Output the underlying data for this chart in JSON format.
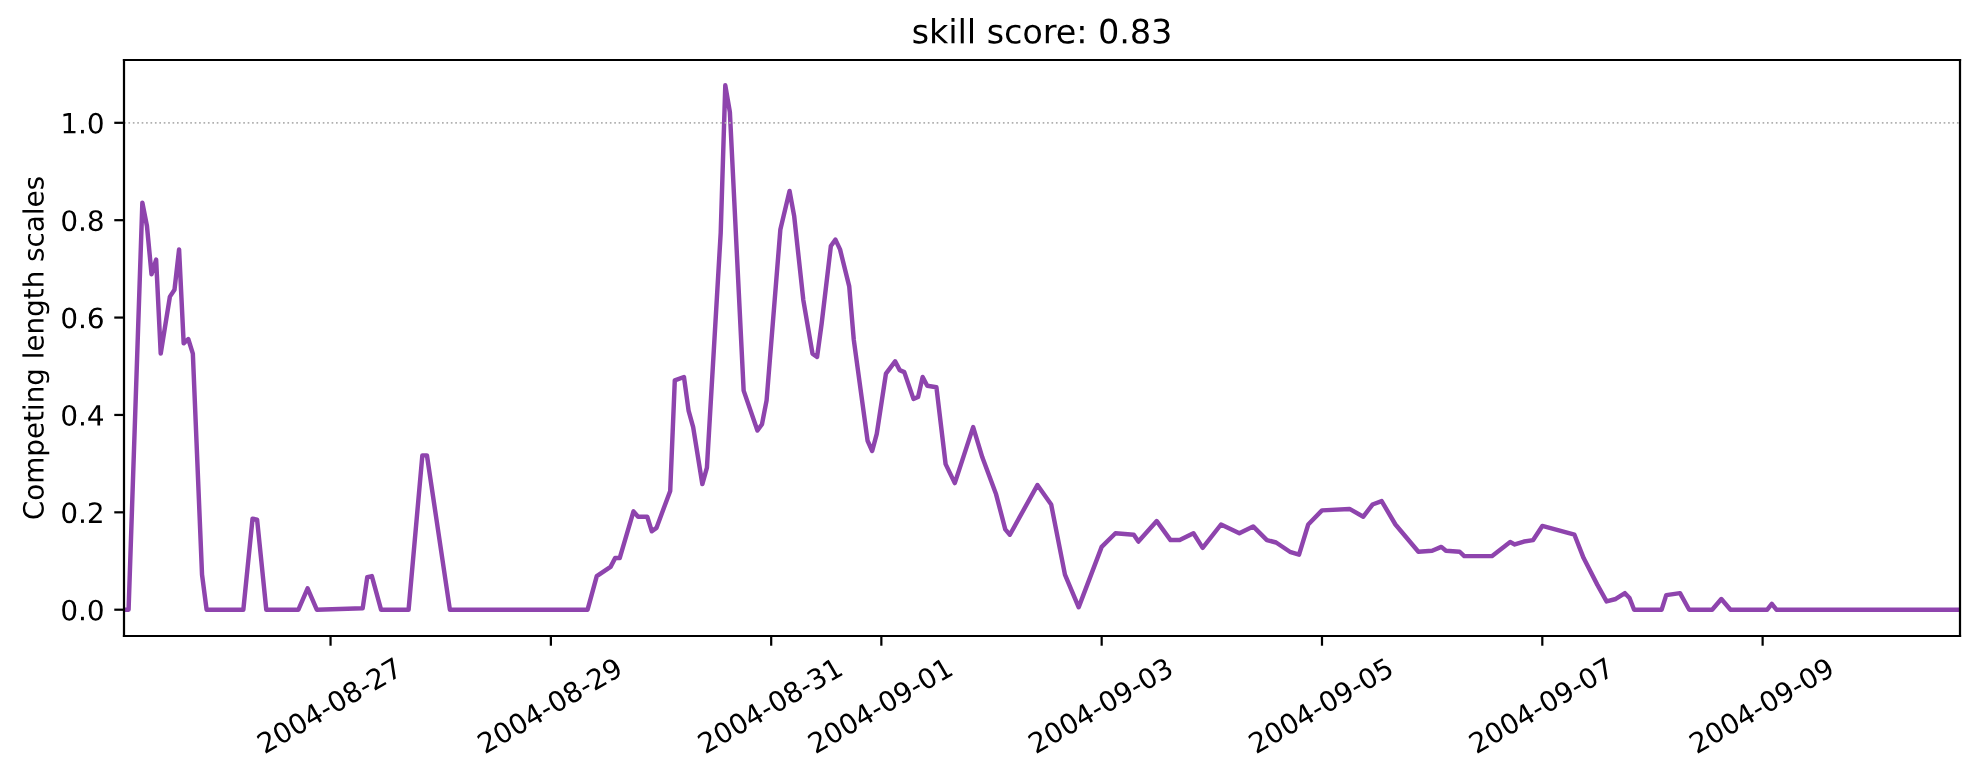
{
  "chart_data": {
    "type": "line",
    "title": "skill score: 0.83",
    "ylabel": "Competing length scales",
    "x": [
      "2004-08-25T03:00",
      "2004-08-25T04:00",
      "2004-08-25T07:00",
      "2004-08-25T08:00",
      "2004-08-25T09:00",
      "2004-08-25T10:00",
      "2004-08-25T11:00",
      "2004-08-25T13:00",
      "2004-08-25T14:00",
      "2004-08-25T15:00",
      "2004-08-25T16:00",
      "2004-08-25T17:00",
      "2004-08-25T18:00",
      "2004-08-25T20:00",
      "2004-08-25T21:00",
      "2004-08-26T05:00",
      "2004-08-26T07:00",
      "2004-08-26T08:00",
      "2004-08-26T10:00",
      "2004-08-26T17:00",
      "2004-08-26T19:00",
      "2004-08-26T21:00",
      "2004-08-27T07:00",
      "2004-08-27T08:00",
      "2004-08-27T09:00",
      "2004-08-27T11:00",
      "2004-08-27T17:00",
      "2004-08-27T20:00",
      "2004-08-27T21:00",
      "2004-08-28T02:00",
      "2004-08-29T08:00",
      "2004-08-29T10:00",
      "2004-08-29T13:00",
      "2004-08-29T14:00",
      "2004-08-29T15:00",
      "2004-08-29T18:00",
      "2004-08-29T19:00",
      "2004-08-29T21:00",
      "2004-08-29T22:00",
      "2004-08-29T23:00",
      "2004-08-30T02:00",
      "2004-08-30T03:00",
      "2004-08-30T05:00",
      "2004-08-30T06:00",
      "2004-08-30T07:00",
      "2004-08-30T09:00",
      "2004-08-30T10:00",
      "2004-08-30T13:00",
      "2004-08-30T14:00",
      "2004-08-30T15:00",
      "2004-08-30T18:00",
      "2004-08-30T21:00",
      "2004-08-30T22:00",
      "2004-08-30T23:00",
      "2004-08-31T02:00",
      "2004-08-31T04:00",
      "2004-08-31T05:00",
      "2004-08-31T07:00",
      "2004-08-31T09:00",
      "2004-08-31T10:00",
      "2004-08-31T11:00",
      "2004-08-31T13:00",
      "2004-08-31T14:00",
      "2004-08-31T15:00",
      "2004-08-31T17:00",
      "2004-08-31T18:00",
      "2004-08-31T21:00",
      "2004-08-31T22:00",
      "2004-08-31T23:00",
      "2004-09-01T01:00",
      "2004-09-01T03:00",
      "2004-09-01T04:00",
      "2004-09-01T05:00",
      "2004-09-01T07:00",
      "2004-09-01T08:00",
      "2004-09-01T09:00",
      "2004-09-01T10:00",
      "2004-09-01T12:00",
      "2004-09-01T14:00",
      "2004-09-01T16:00",
      "2004-09-01T20:00",
      "2004-09-01T22:00",
      "2004-09-02T01:00",
      "2004-09-02T03:00",
      "2004-09-02T04:00",
      "2004-09-02T10:00",
      "2004-09-02T13:00",
      "2004-09-02T16:00",
      "2004-09-02T19:00",
      "2004-09-02T20:00",
      "2004-09-03T00:00",
      "2004-09-03T03:00",
      "2004-09-03T07:00",
      "2004-09-03T08:00",
      "2004-09-03T12:00",
      "2004-09-03T15:00",
      "2004-09-03T17:00",
      "2004-09-03T20:00",
      "2004-09-03T22:00",
      "2004-09-04T02:00",
      "2004-09-04T06:00",
      "2004-09-04T09:00",
      "2004-09-04T12:00",
      "2004-09-04T14:00",
      "2004-09-04T17:00",
      "2004-09-04T19:00",
      "2004-09-04T21:00",
      "2004-09-05T00:00",
      "2004-09-05T06:00",
      "2004-09-05T09:00",
      "2004-09-05T11:00",
      "2004-09-05T13:00",
      "2004-09-05T16:00",
      "2004-09-05T21:00",
      "2004-09-06T00:00",
      "2004-09-06T02:00",
      "2004-09-06T03:00",
      "2004-09-06T06:00",
      "2004-09-06T07:00",
      "2004-09-06T13:00",
      "2004-09-06T17:00",
      "2004-09-06T18:00",
      "2004-09-06T20:00",
      "2004-09-06T22:00",
      "2004-09-07T00:00",
      "2004-09-07T07:00",
      "2004-09-07T09:00",
      "2004-09-07T12:00",
      "2004-09-07T14:00",
      "2004-09-07T16:00",
      "2004-09-07T18:00",
      "2004-09-07T19:00",
      "2004-09-07T20:00",
      "2004-09-08T02:00",
      "2004-09-08T03:00",
      "2004-09-08T06:00",
      "2004-09-08T08:00",
      "2004-09-08T13:00",
      "2004-09-08T15:00",
      "2004-09-08T17:00",
      "2004-09-09T01:00",
      "2004-09-09T02:00",
      "2004-09-09T03:00",
      "2004-09-10T19:00"
    ],
    "series": [
      {
        "color": "#8e44ad",
        "values": [
          0,
          0,
          0.836,
          0.788,
          0.689,
          0.719,
          0.526,
          0.643,
          0.657,
          0.74,
          0.547,
          0.556,
          0.526,
          0.072,
          0,
          0,
          0.187,
          0.185,
          0,
          0,
          0.044,
          0,
          0.003,
          0.067,
          0.069,
          0,
          0,
          0.317,
          0.317,
          0,
          0,
          0.069,
          0.088,
          0.106,
          0.106,
          0.202,
          0.191,
          0.191,
          0.161,
          0.168,
          0.244,
          0.471,
          0.478,
          0.409,
          0.375,
          0.258,
          0.292,
          0.774,
          1.077,
          1.022,
          0.45,
          0.368,
          0.381,
          0.43,
          0.781,
          0.86,
          0.809,
          0.636,
          0.526,
          0.519,
          0.588,
          0.747,
          0.76,
          0.74,
          0.664,
          0.554,
          0.347,
          0.326,
          0.361,
          0.485,
          0.51,
          0.492,
          0.488,
          0.433,
          0.437,
          0.478,
          0.46,
          0.457,
          0.299,
          0.26,
          0.375,
          0.313,
          0.237,
          0.165,
          0.154,
          0.256,
          0.216,
          0.072,
          0.005,
          0.03,
          0.129,
          0.157,
          0.154,
          0.14,
          0.182,
          0.143,
          0.143,
          0.157,
          0.127,
          0.175,
          0.157,
          0.171,
          0.143,
          0.138,
          0.119,
          0.113,
          0.175,
          0.204,
          0.207,
          0.191,
          0.216,
          0.223,
          0.175,
          0.119,
          0.121,
          0.129,
          0.121,
          0.119,
          0.11,
          0.11,
          0.139,
          0.134,
          0.14,
          0.143,
          0.172,
          0.154,
          0.106,
          0.051,
          0.017,
          0.022,
          0.034,
          0.024,
          0,
          0,
          0.03,
          0.034,
          0,
          0,
          0.022,
          0,
          0,
          0.012,
          0,
          0
        ]
      }
    ],
    "xlim": [
      "2004-08-25T03:00",
      "2004-09-10T19:00"
    ],
    "xticks": [
      "2004-08-27",
      "2004-08-29",
      "2004-08-31",
      "2004-09-01",
      "2004-09-03",
      "2004-09-05",
      "2004-09-07",
      "2004-09-09"
    ],
    "ylim": [
      -0.054,
      1.129
    ],
    "yticks": [
      {
        "value": 0,
        "label": "0.0"
      },
      0.2,
      0.4,
      0.6,
      0.8,
      {
        "value": 1,
        "label": "1.0"
      }
    ],
    "ref_lines": [
      {
        "axis": "y",
        "value": 1.0,
        "color": "#b0b0b0",
        "line_style": "dotted"
      }
    ],
    "grid": false,
    "legend": false
  }
}
